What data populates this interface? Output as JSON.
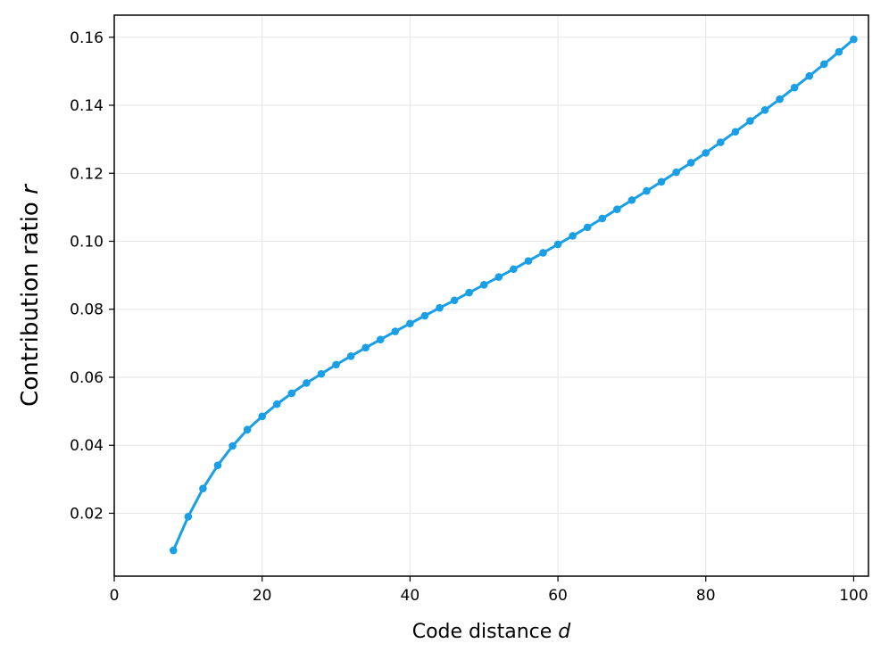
{
  "chart_data": {
    "type": "line",
    "title": "",
    "xlabel": "Code distance",
    "xlabel_var": "d",
    "ylabel": "Contribution ratio",
    "ylabel_var": "r",
    "xlim": [
      0,
      102
    ],
    "ylim": [
      0.0015,
      0.1665
    ],
    "xticks": [
      0,
      20,
      40,
      60,
      80,
      100
    ],
    "xtick_labels": [
      "0",
      "20",
      "40",
      "60",
      "80",
      "100"
    ],
    "yticks": [
      0.02,
      0.04,
      0.06,
      0.08,
      0.1,
      0.12,
      0.14,
      0.16
    ],
    "ytick_labels": [
      "0.02",
      "0.04",
      "0.06",
      "0.08",
      "0.10",
      "0.12",
      "0.14",
      "0.16"
    ],
    "grid": true,
    "legend": false,
    "color": "#1a9fe6",
    "series": [
      {
        "x": [
          8,
          10,
          12,
          14,
          16,
          18,
          20,
          22,
          24,
          26,
          28,
          30,
          32,
          34,
          36,
          38,
          40,
          42,
          44,
          46,
          48,
          50,
          52,
          54,
          56,
          58,
          60,
          62,
          64,
          66,
          68,
          70,
          72,
          74,
          76,
          78,
          80,
          82,
          84,
          86,
          88,
          90,
          92,
          94,
          96,
          98,
          100
        ],
        "y": [
          0.0091,
          0.019,
          0.0273,
          0.0341,
          0.0398,
          0.0446,
          0.0485,
          0.0521,
          0.0553,
          0.0583,
          0.061,
          0.0637,
          0.0662,
          0.0687,
          0.0711,
          0.0735,
          0.0758,
          0.0781,
          0.0804,
          0.0826,
          0.0849,
          0.0872,
          0.0895,
          0.0918,
          0.0942,
          0.0966,
          0.0991,
          0.1016,
          0.1041,
          0.1067,
          0.1094,
          0.1121,
          0.1148,
          0.1175,
          0.1203,
          0.1231,
          0.126,
          0.1291,
          0.1322,
          0.1354,
          0.1386,
          0.1418,
          0.1452,
          0.1486,
          0.1521,
          0.1557,
          0.1594
        ]
      }
    ]
  }
}
